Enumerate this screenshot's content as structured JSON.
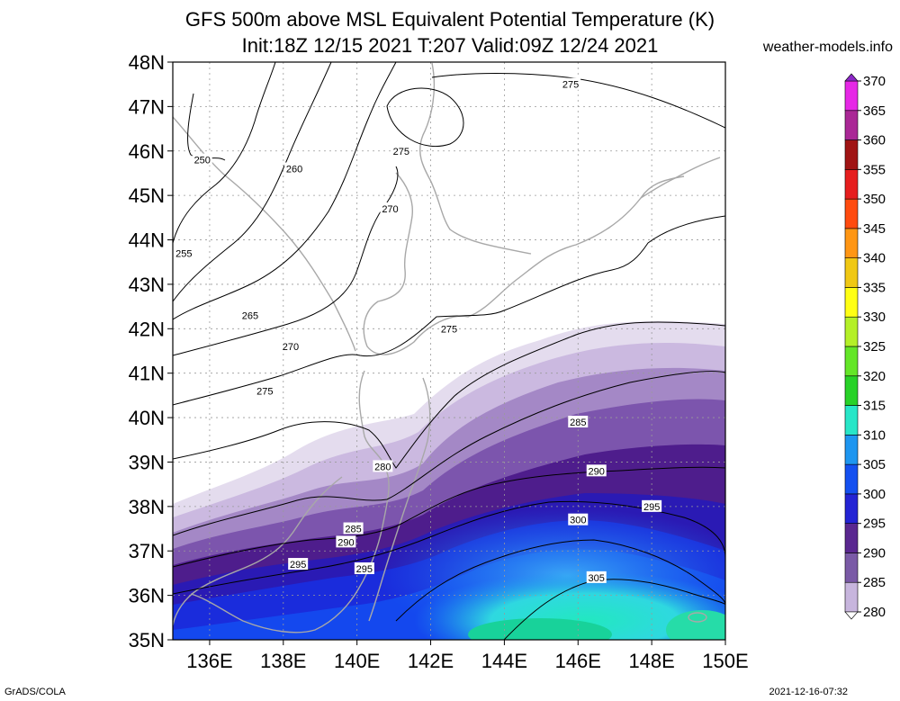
{
  "header": {
    "title_line1": "GFS 500m above MSL Equivalent Potential Temperature (K)",
    "title_line2": "Init:18Z 12/15 2021 T:207 Valid:09Z 12/24 2021",
    "site": "weather-models.info"
  },
  "footer": {
    "left": "GrADS/COLA",
    "right": "2021-12-16-07:32"
  },
  "map": {
    "lon_range": [
      135,
      150
    ],
    "lat_range": [
      35,
      48
    ],
    "lon_ticks": [
      136,
      138,
      140,
      142,
      144,
      146,
      148,
      150
    ],
    "lon_labels": [
      "136E",
      "138E",
      "140E",
      "142E",
      "144E",
      "146E",
      "148E",
      "150E"
    ],
    "lat_ticks": [
      35,
      36,
      37,
      38,
      39,
      40,
      41,
      42,
      43,
      44,
      45,
      46,
      47,
      48
    ],
    "lat_labels": [
      "35N",
      "36N",
      "37N",
      "38N",
      "39N",
      "40N",
      "41N",
      "42N",
      "43N",
      "44N",
      "45N",
      "46N",
      "47N",
      "48N"
    ],
    "contour_labels": [
      {
        "text": "275",
        "lon": 145.8,
        "lat": 47.5
      },
      {
        "text": "250",
        "lon": 135.8,
        "lat": 45.8
      },
      {
        "text": "260",
        "lon": 138.3,
        "lat": 45.6
      },
      {
        "text": "275",
        "lon": 141.2,
        "lat": 46.0
      },
      {
        "text": "270",
        "lon": 140.9,
        "lat": 44.7
      },
      {
        "text": "255",
        "lon": 135.3,
        "lat": 43.7
      },
      {
        "text": "265",
        "lon": 137.1,
        "lat": 42.3
      },
      {
        "text": "270",
        "lon": 138.2,
        "lat": 41.6
      },
      {
        "text": "275",
        "lon": 142.5,
        "lat": 42.0
      },
      {
        "text": "275",
        "lon": 137.5,
        "lat": 40.6
      },
      {
        "text": "285",
        "lon": 146.0,
        "lat": 39.9
      },
      {
        "text": "280",
        "lon": 140.7,
        "lat": 38.9
      },
      {
        "text": "290",
        "lon": 146.5,
        "lat": 38.8
      },
      {
        "text": "295",
        "lon": 148.0,
        "lat": 38.0
      },
      {
        "text": "300",
        "lon": 146.0,
        "lat": 37.7
      },
      {
        "text": "285",
        "lon": 139.9,
        "lat": 37.5
      },
      {
        "text": "290",
        "lon": 139.7,
        "lat": 37.2
      },
      {
        "text": "295",
        "lon": 138.4,
        "lat": 36.7
      },
      {
        "text": "295",
        "lon": 140.2,
        "lat": 36.6
      },
      {
        "text": "305",
        "lon": 146.5,
        "lat": 36.4
      }
    ]
  },
  "colorbar": {
    "levels": [
      280,
      285,
      290,
      295,
      300,
      305,
      310,
      315,
      320,
      325,
      330,
      335,
      340,
      345,
      350,
      355,
      360,
      365,
      370
    ],
    "labels": [
      "280",
      "285",
      "290",
      "295",
      "300",
      "305",
      "310",
      "315",
      "320",
      "325",
      "330",
      "335",
      "340",
      "345",
      "350",
      "355",
      "360",
      "365",
      "370"
    ],
    "colors": [
      "#c7b5dd",
      "#7a5aa6",
      "#5a2890",
      "#2424d4",
      "#1450f0",
      "#1e96f0",
      "#28e6c8",
      "#28d228",
      "#64e628",
      "#b4f028",
      "#ffff14",
      "#f0c814",
      "#ff9614",
      "#ff4b0f",
      "#e61e1e",
      "#a01414",
      "#aa2896",
      "#e628e6",
      "#8c28c8"
    ]
  }
}
